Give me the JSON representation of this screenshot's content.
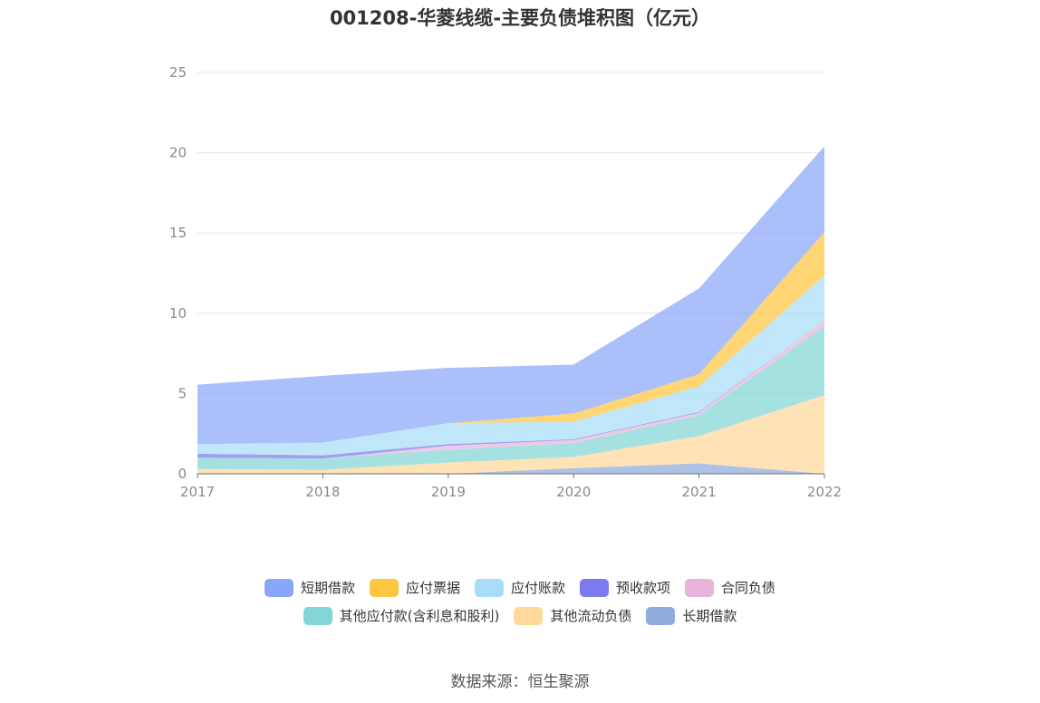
{
  "title": "001208-华菱线缆-主要负债堆积图（亿元）",
  "source": "数据来源：恒生聚源",
  "chart_data": {
    "type": "area",
    "stacked": true,
    "x": [
      "2017",
      "2018",
      "2019",
      "2020",
      "2021",
      "2022"
    ],
    "ylim": [
      0,
      25
    ],
    "yticks": [
      0,
      5,
      10,
      15,
      20,
      25
    ],
    "grid": true,
    "legend_position": "bottom",
    "series": [
      {
        "name": "长期借款",
        "color": "#8faadc",
        "values": [
          0,
          0,
          0,
          0.35,
          0.65,
          0
        ]
      },
      {
        "name": "其他流动负债",
        "color": "#ffd89a",
        "values": [
          0.3,
          0.25,
          0.7,
          0.7,
          1.7,
          4.9
        ]
      },
      {
        "name": "其他应付款(含利息和股利)",
        "color": "#84d6d6",
        "values": [
          0.7,
          0.7,
          0.8,
          0.85,
          1.3,
          4.3
        ]
      },
      {
        "name": "合同负债",
        "color": "#e8b4dc",
        "values": [
          0,
          0,
          0.25,
          0.2,
          0.15,
          0.35
        ]
      },
      {
        "name": "预收款项",
        "color": "#7b7bef",
        "values": [
          0.25,
          0.2,
          0.1,
          0.05,
          0.05,
          0
        ]
      },
      {
        "name": "应付账款",
        "color": "#a8dcf8",
        "values": [
          0.6,
          0.8,
          1.3,
          1.1,
          1.6,
          2.8
        ]
      },
      {
        "name": "应付票据",
        "color": "#ffc63f",
        "values": [
          0,
          0,
          0,
          0.5,
          0.75,
          2.7
        ]
      },
      {
        "name": "短期借款",
        "color": "#8aa6f8",
        "values": [
          3.7,
          4.15,
          3.45,
          3.05,
          5.35,
          5.35
        ]
      }
    ]
  },
  "legend": {
    "row1": [
      {
        "label": "短期借款",
        "color": "#8aa6f8"
      },
      {
        "label": "应付票据",
        "color": "#ffc63f"
      },
      {
        "label": "应付账款",
        "color": "#a8dcf8"
      },
      {
        "label": "预收款项",
        "color": "#7b7bef"
      },
      {
        "label": "合同负债",
        "color": "#e8b4dc"
      }
    ],
    "row2": [
      {
        "label": "其他应付款(含利息和股利)",
        "color": "#84d6d6"
      },
      {
        "label": "其他流动负债",
        "color": "#ffd89a"
      },
      {
        "label": "长期借款",
        "color": "#8faadc"
      }
    ]
  }
}
